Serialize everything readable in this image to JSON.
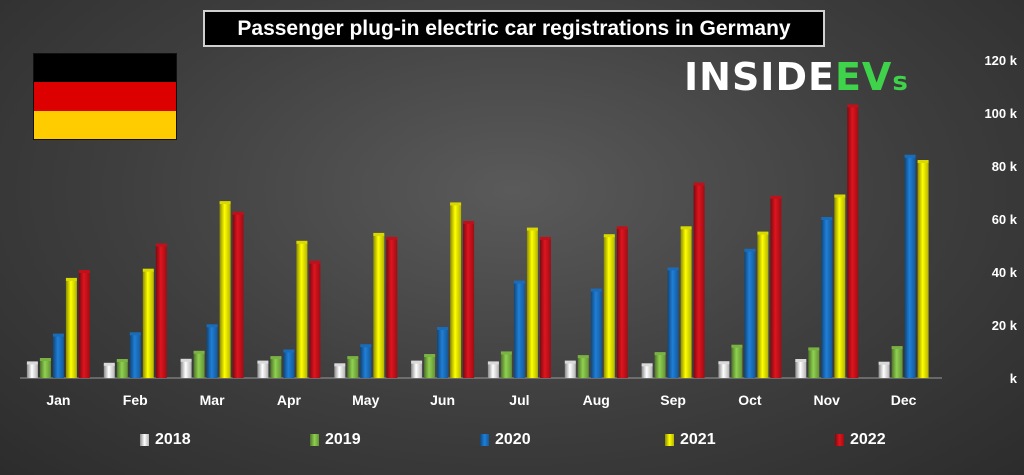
{
  "title": "Passenger plug-in electric car registrations in Germany",
  "logo": {
    "main": "INSIDE",
    "ev": "EV",
    "s": "s"
  },
  "flag_colors": [
    "#000000",
    "#dd0000",
    "#ffcc00"
  ],
  "chart_data": {
    "type": "bar",
    "title": "Passenger plug-in electric car registrations in Germany",
    "xlabel": "",
    "ylabel": "",
    "categories": [
      "Jan",
      "Feb",
      "Mar",
      "Apr",
      "May",
      "Jun",
      "Jul",
      "Aug",
      "Sep",
      "Oct",
      "Nov",
      "Dec"
    ],
    "ylim": [
      0,
      120000
    ],
    "yticks": [
      0,
      20000,
      40000,
      60000,
      80000,
      100000,
      120000
    ],
    "ytick_labels": [
      "k",
      "20 k",
      "40 k",
      "60 k",
      "80 k",
      "100 k",
      "120 k"
    ],
    "grid": false,
    "legend_position": "bottom",
    "series": [
      {
        "name": "2018",
        "color": "#ffffff",
        "values": [
          5500,
          5000,
          6500,
          5800,
          4800,
          5800,
          5500,
          5800,
          4800,
          5600,
          6400,
          5400
        ]
      },
      {
        "name": "2019",
        "color": "#8fd14f",
        "values": [
          6800,
          6400,
          9500,
          7500,
          7500,
          8300,
          9300,
          7900,
          9000,
          11800,
          10800,
          11300
        ]
      },
      {
        "name": "2020",
        "color": "#1f7fd8",
        "values": [
          16000,
          16500,
          19500,
          10000,
          12000,
          18500,
          36000,
          33000,
          41000,
          48000,
          60000,
          83500
        ]
      },
      {
        "name": "2021",
        "color": "#ffff00",
        "values": [
          37000,
          40500,
          66000,
          51000,
          54000,
          65500,
          56000,
          53500,
          56500,
          54500,
          68500,
          81500
        ]
      },
      {
        "name": "2022",
        "color": "#e0141e",
        "values": [
          40000,
          50000,
          62000,
          43500,
          52500,
          58500,
          52500,
          56500,
          73000,
          68000,
          102500,
          null
        ]
      }
    ]
  }
}
